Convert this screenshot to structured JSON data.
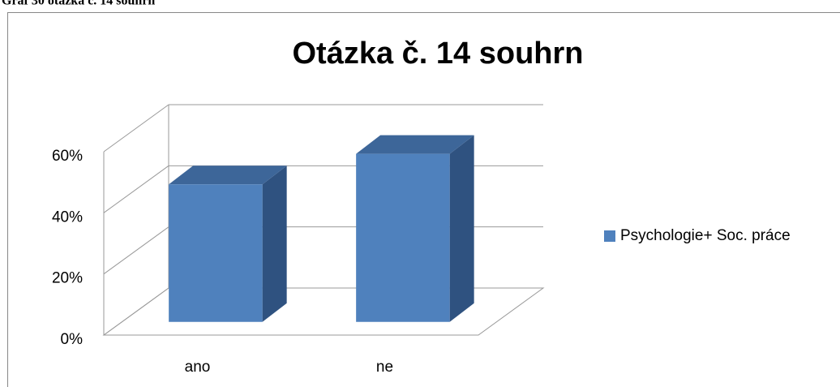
{
  "caption": "Graf 30 otázka č. 14 souhrn",
  "chart_data": {
    "type": "bar",
    "title": "Otázka č. 14 souhrn",
    "categories": [
      "ano",
      "ne"
    ],
    "series": [
      {
        "name": "Psychologie+ Soc. práce",
        "color": "#4f81bd",
        "values": [
          45,
          55
        ]
      }
    ],
    "ylim": [
      0,
      60
    ],
    "yticks": [
      {
        "value": 0,
        "label": "0%"
      },
      {
        "value": 20,
        "label": "20%"
      },
      {
        "value": 40,
        "label": "40%"
      },
      {
        "value": 60,
        "label": "60%"
      }
    ],
    "grid": true,
    "legend": "right"
  }
}
